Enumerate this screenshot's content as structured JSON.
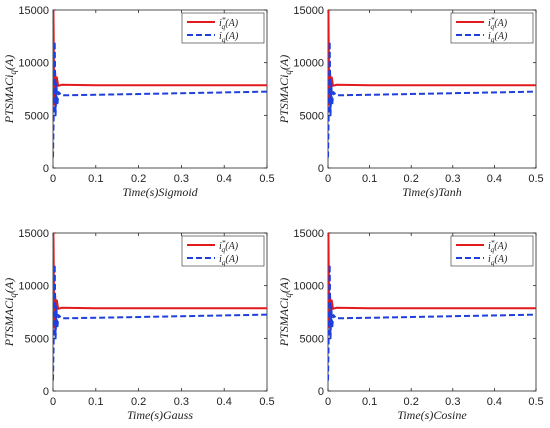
{
  "chart_data": [
    {
      "type": "line",
      "xlabel": "Time(s)Sigmoid",
      "ylabel": "PTSMACi_q(A)",
      "xlim": [
        0,
        0.5
      ],
      "ylim": [
        0,
        15000
      ],
      "xticks": [
        "0",
        "0.1",
        "0.2",
        "0.3",
        "0.4",
        "0.5"
      ],
      "yticks": [
        "0",
        "5000",
        "10000",
        "15000"
      ],
      "legend_position": "top-right",
      "series": [
        {
          "name": "i_q^*(A)",
          "color": "#e31a1c",
          "style": "solid",
          "x": [
            0,
            0.001,
            0.003,
            0.005,
            0.007,
            0.009,
            0.012,
            0.02,
            0.1,
            0.3,
            0.5
          ],
          "y": [
            15000,
            15000,
            6000,
            9000,
            7200,
            8600,
            7800,
            7900,
            7850,
            7850,
            7850
          ]
        },
        {
          "name": "i_q(A)",
          "color": "#1f3fdc",
          "style": "dashed",
          "x": [
            0,
            0.002,
            0.004,
            0.006,
            0.008,
            0.01,
            0.013,
            0.02,
            0.1,
            0.3,
            0.5
          ],
          "y": [
            1000,
            6000,
            12000,
            5000,
            8000,
            6000,
            7200,
            6900,
            6950,
            7100,
            7250
          ]
        }
      ]
    },
    {
      "type": "line",
      "xlabel": "Time(s)Tanh",
      "ylabel": "PTSMACi_q(A)",
      "xlim": [
        0,
        0.5
      ],
      "ylim": [
        0,
        15000
      ],
      "xticks": [
        "0",
        "0.1",
        "0.2",
        "0.3",
        "0.4",
        "0.5"
      ],
      "yticks": [
        "0",
        "5000",
        "10000",
        "15000"
      ],
      "legend_position": "top-right",
      "series": [
        {
          "name": "i_q^*(A)",
          "color": "#e31a1c",
          "style": "solid",
          "x": [
            0,
            0.001,
            0.003,
            0.005,
            0.007,
            0.009,
            0.012,
            0.02,
            0.1,
            0.3,
            0.5
          ],
          "y": [
            15000,
            15000,
            6000,
            9000,
            7200,
            8600,
            7800,
            7900,
            7850,
            7850,
            7850
          ]
        },
        {
          "name": "i_q(A)",
          "color": "#1f3fdc",
          "style": "dashed",
          "x": [
            0,
            0.002,
            0.004,
            0.006,
            0.008,
            0.01,
            0.013,
            0.02,
            0.1,
            0.3,
            0.5
          ],
          "y": [
            1000,
            6000,
            12000,
            5000,
            8000,
            6000,
            7200,
            6900,
            6950,
            7100,
            7250
          ]
        }
      ]
    },
    {
      "type": "line",
      "xlabel": "Time(s)Gauss",
      "ylabel": "PTSMACi_q(A)",
      "xlim": [
        0,
        0.5
      ],
      "ylim": [
        0,
        15000
      ],
      "xticks": [
        "0",
        "0.1",
        "0.2",
        "0.3",
        "0.4",
        "0.5"
      ],
      "yticks": [
        "0",
        "5000",
        "10000",
        "15000"
      ],
      "legend_position": "top-right",
      "series": [
        {
          "name": "i_q^*(A)",
          "color": "#e31a1c",
          "style": "solid",
          "x": [
            0,
            0.001,
            0.003,
            0.005,
            0.007,
            0.009,
            0.012,
            0.02,
            0.1,
            0.3,
            0.5
          ],
          "y": [
            15000,
            15000,
            6000,
            9000,
            7200,
            8600,
            7800,
            7900,
            7850,
            7850,
            7850
          ]
        },
        {
          "name": "i_q(A)",
          "color": "#1f3fdc",
          "style": "dashed",
          "x": [
            0,
            0.002,
            0.004,
            0.006,
            0.008,
            0.01,
            0.013,
            0.02,
            0.1,
            0.3,
            0.5
          ],
          "y": [
            1000,
            6000,
            12000,
            5000,
            8000,
            6000,
            7200,
            6900,
            6950,
            7100,
            7250
          ]
        }
      ]
    },
    {
      "type": "line",
      "xlabel": "Time(s)Cosine",
      "ylabel": "PTSMACi_q(A)",
      "xlim": [
        0,
        0.5
      ],
      "ylim": [
        0,
        15000
      ],
      "xticks": [
        "0",
        "0.1",
        "0.2",
        "0.3",
        "0.4",
        "0.5"
      ],
      "yticks": [
        "0",
        "5000",
        "10000",
        "15000"
      ],
      "legend_position": "top-right",
      "series": [
        {
          "name": "i_q^*(A)",
          "color": "#e31a1c",
          "style": "solid",
          "x": [
            0,
            0.001,
            0.003,
            0.005,
            0.007,
            0.009,
            0.012,
            0.02,
            0.1,
            0.3,
            0.5
          ],
          "y": [
            15000,
            15000,
            6000,
            9000,
            7200,
            8600,
            7800,
            7900,
            7850,
            7850,
            7850
          ]
        },
        {
          "name": "i_q(A)",
          "color": "#1f3fdc",
          "style": "dashed",
          "x": [
            0,
            0.002,
            0.004,
            0.006,
            0.008,
            0.01,
            0.013,
            0.02,
            0.1,
            0.3,
            0.5
          ],
          "y": [
            1000,
            6000,
            12000,
            5000,
            8000,
            6000,
            7200,
            6900,
            6950,
            7100,
            7250
          ]
        }
      ]
    }
  ]
}
